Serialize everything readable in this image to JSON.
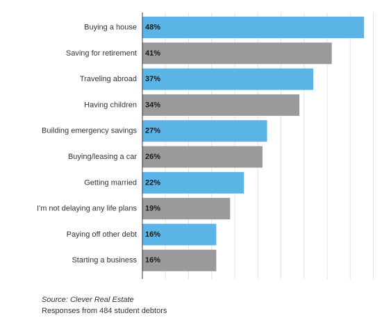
{
  "chart_data": {
    "type": "bar",
    "orientation": "horizontal",
    "categories": [
      "Buying a house",
      "Saving for retirement",
      "Traveling abroad",
      "Having children",
      "Building emergency savings",
      "Buying/leasing a car",
      "Getting married",
      "I'm not delaying any life plans",
      "Paying off other debt",
      "Starting a business"
    ],
    "values": [
      48,
      41,
      37,
      34,
      27,
      26,
      22,
      19,
      16,
      16
    ],
    "value_labels": [
      "48%",
      "41%",
      "37%",
      "34%",
      "27%",
      "26%",
      "22%",
      "19%",
      "16%",
      "16%"
    ],
    "value_unit": "%",
    "xlim": [
      0,
      50
    ],
    "grid": true,
    "colors": {
      "primary": "#5ab4e5",
      "secondary": "#9a9a9a"
    }
  },
  "footer": {
    "source": "Source: Clever Real Estate",
    "note": "Responses from 484 student debtors"
  }
}
